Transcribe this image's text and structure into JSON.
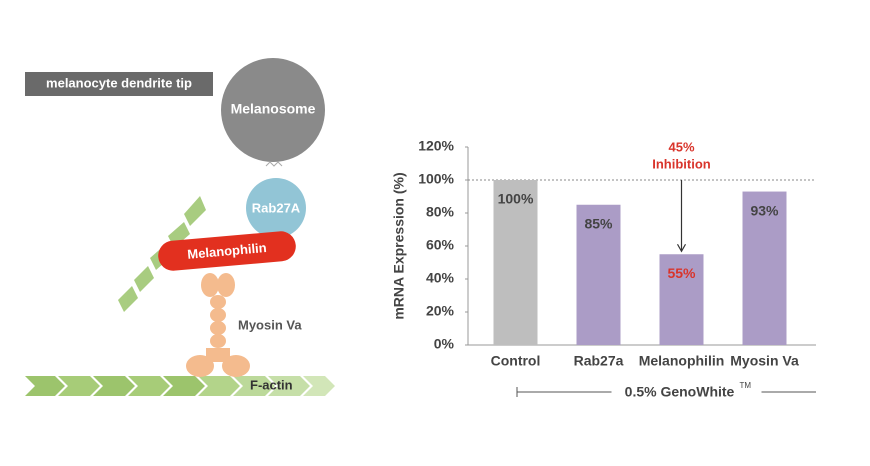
{
  "diagram": {
    "location_label": "melanocyte dendrite tip",
    "melanosome": "Melanosome",
    "rab27a": "Rab27A",
    "melanophilin": "Melanophilin",
    "myosin": "Myosin Va",
    "factin": "F-actin"
  },
  "chart_data": {
    "type": "bar",
    "y_label": "mRNA Expression (%)",
    "categories": [
      "Control",
      "Rab27a",
      "Melanophilin",
      "Myosin Va"
    ],
    "values": [
      100,
      85,
      55,
      93
    ],
    "value_labels": [
      "100%",
      "85%",
      "55%",
      "93%"
    ],
    "colors": [
      "#bebebe",
      "#ab9cc6",
      "#ab9cc6",
      "#ab9cc6"
    ],
    "value_label_colors": [
      "#444444",
      "#444444",
      "#d9342b",
      "#444444"
    ],
    "ylim": [
      0,
      120
    ],
    "yticks": [
      {
        "value": 0,
        "label": "0%"
      },
      {
        "value": 20,
        "label": "20%"
      },
      {
        "value": 40,
        "label": "40%"
      },
      {
        "value": 60,
        "label": "60%"
      },
      {
        "value": 80,
        "label": "80%"
      },
      {
        "value": 100,
        "label": "100%"
      },
      {
        "value": 120,
        "label": "120%"
      }
    ],
    "grid": false,
    "reference_line": 100,
    "annotation": {
      "lines": [
        "45%",
        "Inhibition"
      ],
      "color": "#d9342b",
      "category_index": 2
    },
    "group_label": "0.5% GenoWhite",
    "group_label_sup": "TM"
  }
}
